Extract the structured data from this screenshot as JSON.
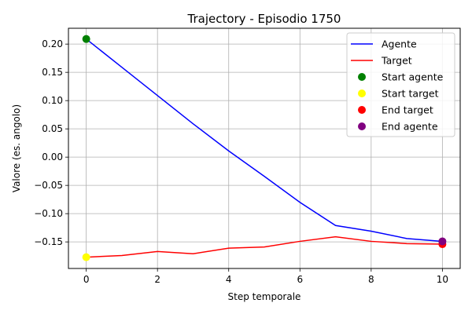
{
  "chart_data": {
    "type": "line",
    "title": "Trajectory - Episodio 1750",
    "xlabel": "Step temporale",
    "ylabel": "Valore (es. angolo)",
    "xlim": [
      -0.5,
      10.5
    ],
    "ylim": [
      -0.197,
      0.228
    ],
    "xticks": [
      0,
      2,
      4,
      6,
      8,
      10
    ],
    "yticks": [
      -0.15,
      -0.1,
      -0.05,
      0.0,
      0.05,
      0.1,
      0.15,
      0.2
    ],
    "ytick_labels": [
      "−0.15",
      "−0.10",
      "−0.05",
      "0.00",
      "0.05",
      "0.10",
      "0.15",
      "0.20"
    ],
    "grid": true,
    "legend_position": "top-right",
    "x": [
      0,
      1,
      2,
      3,
      4,
      5,
      6,
      7,
      8,
      9,
      10
    ],
    "series": [
      {
        "name": "Agente",
        "color": "#0000ff",
        "values": [
          0.209,
          0.159,
          0.109,
          0.059,
          0.011,
          -0.034,
          -0.08,
          -0.121,
          -0.131,
          -0.144,
          -0.149
        ]
      },
      {
        "name": "Target",
        "color": "#ff0000",
        "values": [
          -0.177,
          -0.174,
          -0.167,
          -0.171,
          -0.161,
          -0.159,
          -0.149,
          -0.141,
          -0.149,
          -0.153,
          -0.154
        ]
      }
    ],
    "markers": [
      {
        "name": "Start agente",
        "color": "#008000",
        "x": 0,
        "y": 0.209
      },
      {
        "name": "Start target",
        "color": "#ffff00",
        "x": 0,
        "y": -0.177
      },
      {
        "name": "End target",
        "color": "#ff0000",
        "x": 10,
        "y": -0.154
      },
      {
        "name": "End agente",
        "color": "#800080",
        "x": 10,
        "y": -0.149
      }
    ]
  }
}
